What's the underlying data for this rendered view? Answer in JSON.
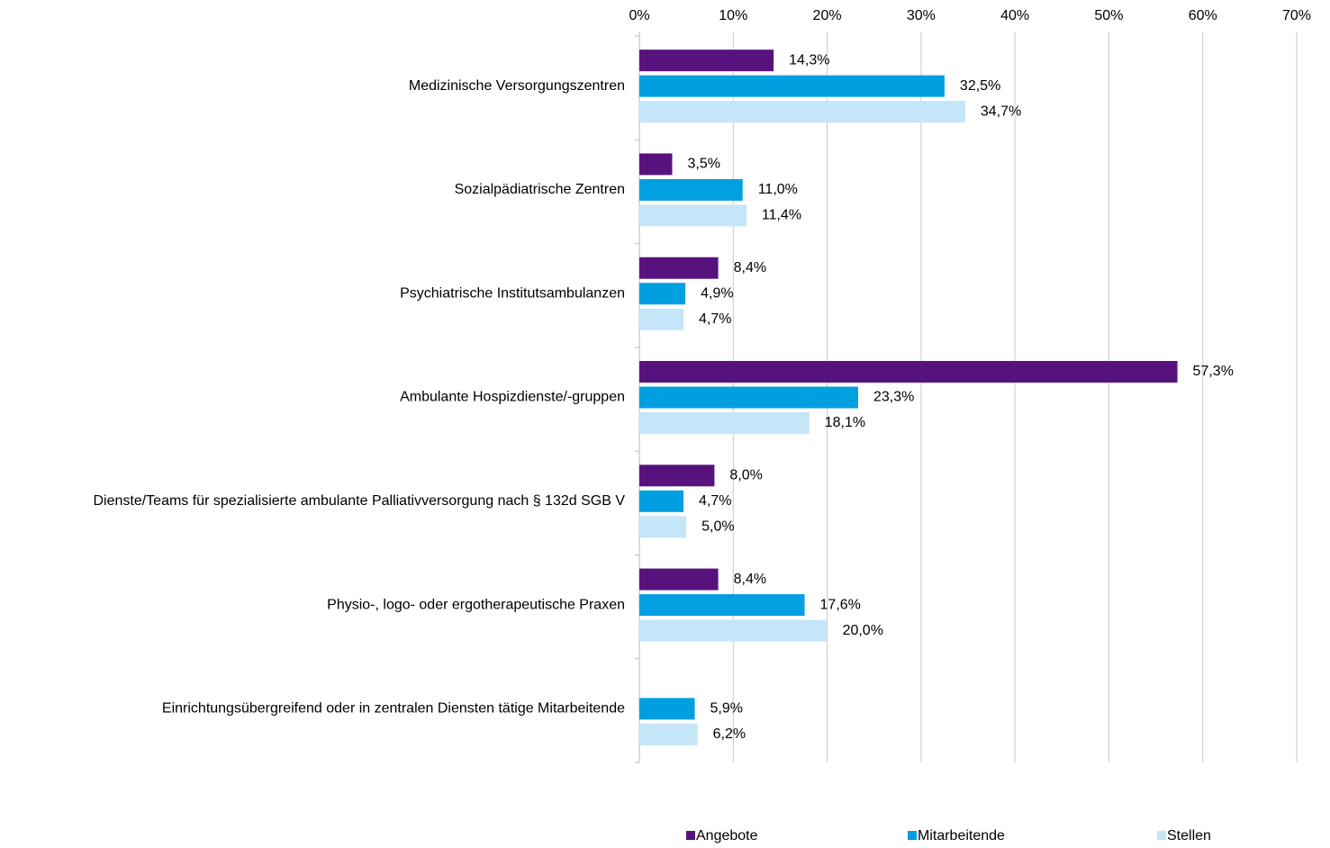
{
  "chart_data": {
    "type": "bar",
    "orientation": "horizontal",
    "categories": [
      "Medizinische Versorgungszentren",
      "Sozialpädiatrische Zentren",
      "Psychiatrische Institutsambulanzen",
      "Ambulante Hospizdienste/-gruppen",
      "Dienste/Teams für spezialisierte ambulante Palliativversorgung nach § 132d SGB V",
      "Physio-, logo- oder ergotherapeutische Praxen",
      "Einrichtungsübergreifend oder in zentralen Diensten tätige Mitarbeitende"
    ],
    "series": [
      {
        "name": "Angebote",
        "color": "#58127e",
        "values": [
          14.3,
          3.5,
          8.4,
          57.3,
          8.0,
          8.4,
          null
        ],
        "value_labels": [
          "14,3%",
          "3,5%",
          "8,4%",
          "57,3%",
          "8,0%",
          "8,4%",
          null
        ]
      },
      {
        "name": "Mitarbeitende",
        "color": "#009fe0",
        "values": [
          32.5,
          11.0,
          4.9,
          23.3,
          4.7,
          17.6,
          5.9
        ],
        "value_labels": [
          "32,5%",
          "11,0%",
          "4,9%",
          "23,3%",
          "4,7%",
          "17,6%",
          "5,9%"
        ]
      },
      {
        "name": "Stellen",
        "color": "#c5e5f8",
        "values": [
          34.7,
          11.4,
          4.7,
          18.1,
          5.0,
          20.0,
          6.2
        ],
        "value_labels": [
          "34,7%",
          "11,4%",
          "4,7%",
          "18,1%",
          "5,0%",
          "20,0%",
          "6,2%"
        ]
      }
    ],
    "xlim": [
      0,
      70
    ],
    "xticks": [
      {
        "value": 0,
        "label": "0%"
      },
      {
        "value": 10,
        "label": "10%"
      },
      {
        "value": 20,
        "label": "20%"
      },
      {
        "value": 30,
        "label": "30%"
      },
      {
        "value": 40,
        "label": "40%"
      },
      {
        "value": 50,
        "label": "50%"
      },
      {
        "value": 60,
        "label": "60%"
      },
      {
        "value": 70,
        "label": "70%"
      }
    ],
    "grid": true,
    "legend": "bottom"
  }
}
